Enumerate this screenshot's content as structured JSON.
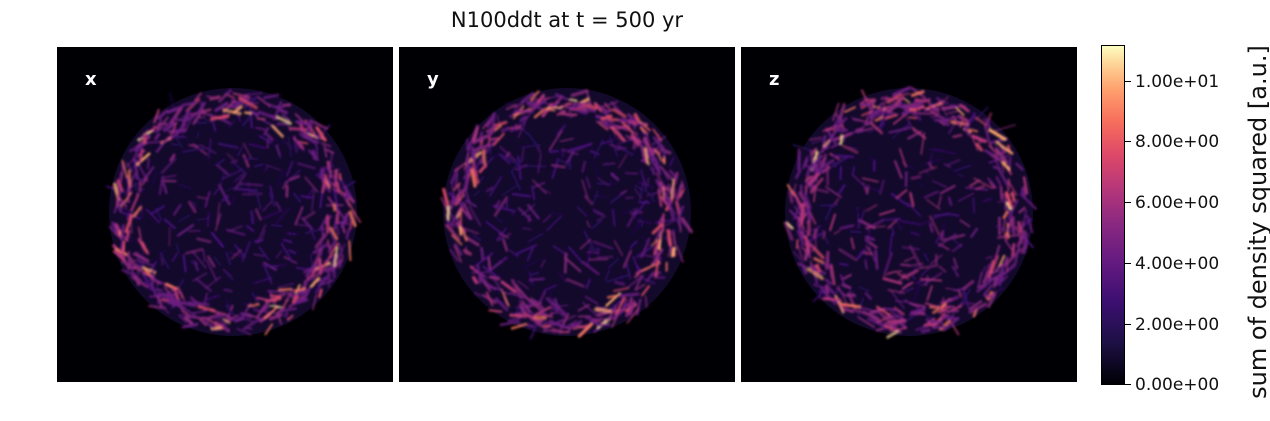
{
  "chart_data": {
    "type": "heatmap",
    "title": "N100ddt at t = 500 yr",
    "panels": [
      {
        "label": "x",
        "description_rim": "bright shell"
      },
      {
        "label": "y",
        "description_rim": "bright shell"
      },
      {
        "label": "z",
        "description_rim": "bright shell"
      }
    ],
    "colormap": "magma",
    "colorbar": {
      "label": "sum of density squared [a.u.]",
      "ticks": [
        "0.00e+00",
        "2.00e+00",
        "4.00e+00",
        "6.00e+00",
        "8.00e+00",
        "1.00e+01"
      ],
      "tick_values": [
        0,
        2,
        4,
        6,
        8,
        10
      ],
      "range": [
        0,
        11.1
      ]
    }
  }
}
